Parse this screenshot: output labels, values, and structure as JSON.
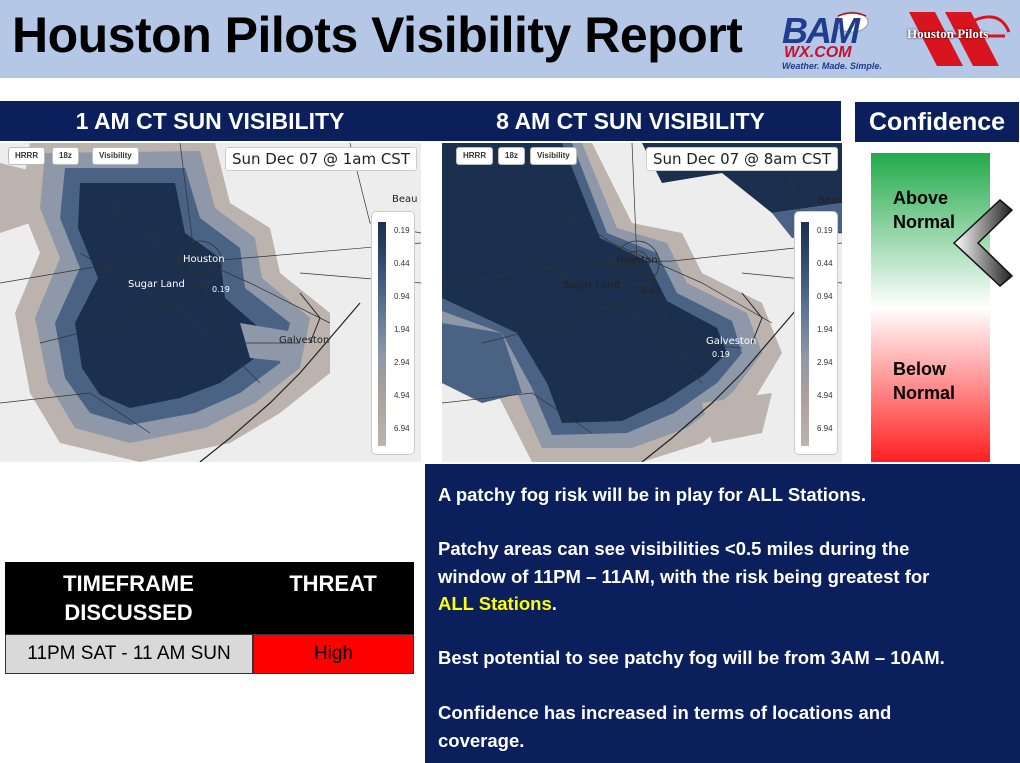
{
  "header": {
    "title": "Houston Pilots Visibility Report",
    "logo_bam_line1": "BAM",
    "logo_bam_line2": "WX.COM",
    "logo_bam_tagline": "Weather. Made. Simple.",
    "logo_pilots": "Houston Pilots"
  },
  "panels": [
    {
      "title": "1 AM CT SUN VISIBILITY",
      "chips": [
        "HRRR",
        "18z",
        "Visibility"
      ],
      "timestamp": "Sun Dec 07 @ 1am CST",
      "cities": {
        "houston": "Houston",
        "sugar_land": "Sugar Land",
        "galveston": "Galveston",
        "beaumont": "Beau",
        "readout": "0.19"
      }
    },
    {
      "title": "8 AM CT SUN VISIBILITY",
      "chips": [
        "HRRR",
        "18z",
        "Visibility"
      ],
      "timestamp": "Sun Dec 07 @ 8am CST",
      "cities": {
        "houston": "Houston",
        "sugar_land": "Sugar Land",
        "galveston": "Galveston",
        "beaumont": "Beau",
        "readout": "0.63",
        "readout2": "0.19"
      }
    }
  ],
  "legend": {
    "values": [
      "0.19",
      "0.44",
      "0.94",
      "1.94",
      "2.94",
      "4.94",
      "6.94"
    ],
    "colors": [
      "#1b2f4f",
      "#2e4668",
      "#4a6384",
      "#6b7f99",
      "#8e98a8",
      "#a99e9b",
      "#bcb3af"
    ]
  },
  "confidence": {
    "title": "Confidence",
    "above_line1": "Above",
    "above_line2": "Normal",
    "below_line1": "Below",
    "below_line2": "Normal",
    "level": "Above Normal",
    "colors": {
      "top": "#22a94a",
      "middle": "#ffffff",
      "bottom": "#ff1f1f"
    }
  },
  "table": {
    "header_timeframe_line1": "TIMEFRAME",
    "header_timeframe_line2": "DISCUSSED",
    "header_threat": "THREAT",
    "timeframe": "11PM SAT - 11 AM SUN",
    "threat": "High",
    "threat_color": "#ff0000"
  },
  "discussion": {
    "p1": "A patchy fog risk will be in play for ALL Stations.",
    "p2_line1": "Patchy areas can see visibilities <0.5 miles during the",
    "p2_line2": "window of 11PM – 11AM, with the risk being greatest for",
    "p2_highlight": "ALL Stations",
    "p2_end": ".",
    "p3": "Best potential to see patchy fog will be from 3AM – 10AM.",
    "p4_line1": "Confidence has increased in terms of locations and",
    "p4_line2": "coverage."
  }
}
